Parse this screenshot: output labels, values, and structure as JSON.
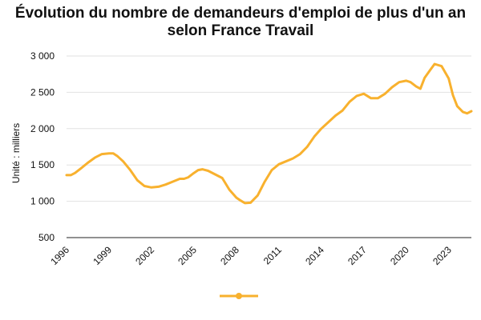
{
  "chart_data": {
    "type": "line",
    "title_line1": "Évolution du nombre de demandeurs d'emploi de plus d'un an",
    "title_line2": "selon France Travail",
    "ylabel": "Unité : milliers",
    "xlabel": "",
    "ylim": [
      500,
      3000
    ],
    "xlim": [
      1996,
      2024.6
    ],
    "y_ticks": [
      {
        "value": 500,
        "label": "500"
      },
      {
        "value": 1000,
        "label": "1 000"
      },
      {
        "value": 1500,
        "label": "1 500"
      },
      {
        "value": 2000,
        "label": "2 000"
      },
      {
        "value": 2500,
        "label": "2 500"
      },
      {
        "value": 3000,
        "label": "3 000"
      }
    ],
    "x_ticks": [
      {
        "value": 1996,
        "label": "1996"
      },
      {
        "value": 1999,
        "label": "1999"
      },
      {
        "value": 2002,
        "label": "2002"
      },
      {
        "value": 2005,
        "label": "2005"
      },
      {
        "value": 2008,
        "label": "2008"
      },
      {
        "value": 2011,
        "label": "2011"
      },
      {
        "value": 2014,
        "label": "2014"
      },
      {
        "value": 2017,
        "label": "2017"
      },
      {
        "value": 2020,
        "label": "2020"
      },
      {
        "value": 2023,
        "label": "2023"
      }
    ],
    "grid": true,
    "legend": "bottom",
    "series": [
      {
        "color": "#f8b12e",
        "x": [
          1996.0,
          1996.3,
          1996.6,
          1997.0,
          1997.5,
          1998.0,
          1998.5,
          1999.0,
          1999.3,
          1999.6,
          2000.0,
          2000.5,
          2001.0,
          2001.5,
          2002.0,
          2002.5,
          2003.0,
          2003.5,
          2004.0,
          2004.3,
          2004.6,
          2005.0,
          2005.3,
          2005.6,
          2006.0,
          2006.5,
          2007.0,
          2007.5,
          2008.0,
          2008.3,
          2008.6,
          2009.0,
          2009.5,
          2010.0,
          2010.5,
          2011.0,
          2011.5,
          2012.0,
          2012.5,
          2013.0,
          2013.5,
          2014.0,
          2014.5,
          2015.0,
          2015.5,
          2016.0,
          2016.5,
          2017.0,
          2017.5,
          2018.0,
          2018.5,
          2019.0,
          2019.5,
          2020.0,
          2020.3,
          2020.7,
          2021.0,
          2021.3,
          2021.7,
          2022.0,
          2022.5,
          2023.0,
          2023.3,
          2023.6,
          2024.0,
          2024.3,
          2024.6
        ],
        "y": [
          1360,
          1360,
          1390,
          1450,
          1530,
          1600,
          1650,
          1660,
          1660,
          1620,
          1550,
          1430,
          1290,
          1210,
          1190,
          1200,
          1230,
          1270,
          1310,
          1310,
          1330,
          1390,
          1430,
          1440,
          1420,
          1370,
          1320,
          1160,
          1050,
          1010,
          975,
          980,
          1080,
          1270,
          1430,
          1510,
          1550,
          1590,
          1650,
          1750,
          1890,
          2000,
          2090,
          2180,
          2250,
          2370,
          2450,
          2480,
          2420,
          2420,
          2480,
          2570,
          2640,
          2660,
          2640,
          2580,
          2550,
          2700,
          2810,
          2890,
          2860,
          2690,
          2460,
          2310,
          2230,
          2210,
          2240
        ]
      }
    ]
  }
}
